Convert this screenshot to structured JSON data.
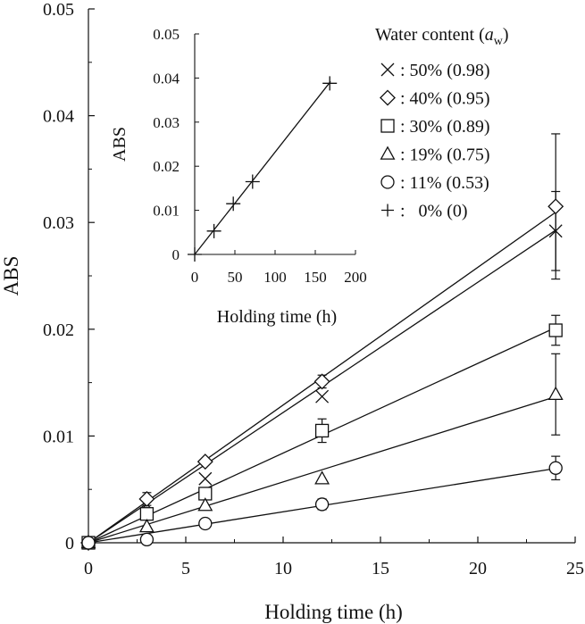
{
  "chart_data": [
    {
      "id": "main",
      "type": "scatter",
      "xlabel": "Holding time (h)",
      "ylabel": "ABS",
      "xlim": [
        0,
        25
      ],
      "ylim": [
        0,
        0.05
      ],
      "xticks": [
        0,
        5,
        10,
        15,
        20,
        25
      ],
      "yticks": [
        0,
        0.01,
        0.02,
        0.03,
        0.04,
        0.05
      ],
      "ytick_labels": [
        "0",
        "0.01",
        "0.02",
        "0.03",
        "0.04",
        "0.05"
      ],
      "legend": {
        "title_prefix": "Water content (",
        "title_var": "a",
        "title_sub": "w",
        "title_suffix": ")",
        "placement": "top-right"
      },
      "series": [
        {
          "name": ": 50% (0.98)",
          "marker": "cross",
          "x": [
            0,
            3,
            6,
            12,
            24
          ],
          "y": [
            0,
            0.0036,
            0.006,
            0.0137,
            0.0292
          ],
          "err": [
            0,
            0,
            0,
            0,
            0.0037
          ],
          "fit_slope": 0.00122
        },
        {
          "name": ": 40% (0.95)",
          "marker": "diamond",
          "x": [
            0,
            3,
            6,
            12,
            24
          ],
          "y": [
            0,
            0.0041,
            0.0076,
            0.0151,
            0.0315
          ],
          "err": [
            0,
            0.0006,
            0,
            0.0006,
            0.0068
          ],
          "fit_slope": 0.00129
        },
        {
          "name": ": 30% (0.89)",
          "marker": "square",
          "x": [
            0,
            3,
            6,
            12,
            24
          ],
          "y": [
            0,
            0.0027,
            0.0046,
            0.0105,
            0.0199
          ],
          "err": [
            0,
            0,
            0,
            0.0011,
            0.0014
          ],
          "fit_slope": 0.00084
        },
        {
          "name": ": 19% (0.75)",
          "marker": "triangle",
          "x": [
            0,
            3,
            6,
            12,
            24
          ],
          "y": [
            0,
            0.0015,
            0.0035,
            0.006,
            0.0139
          ],
          "err": [
            0,
            0,
            0,
            0,
            0.0038
          ],
          "fit_slope": 0.00057
        },
        {
          "name": ": 11% (0.53)",
          "marker": "circle",
          "x": [
            0,
            3,
            6,
            12,
            24
          ],
          "y": [
            0,
            0.0003,
            0.0018,
            0.0036,
            0.007
          ],
          "err": [
            0,
            0,
            0,
            0.0005,
            0.0011
          ],
          "fit_slope": 0.00029
        },
        {
          "name": ":   0% (0)",
          "marker": "plus",
          "x": [],
          "y": [],
          "err": [],
          "fit_slope": null
        }
      ]
    },
    {
      "id": "inset",
      "type": "scatter",
      "xlabel": "Holding time (h)",
      "ylabel": "ABS",
      "xlim": [
        0,
        200
      ],
      "ylim": [
        0,
        0.05
      ],
      "xticks": [
        0,
        50,
        100,
        150,
        200
      ],
      "yticks": [
        0,
        0.01,
        0.02,
        0.03,
        0.04,
        0.05
      ],
      "ytick_labels": [
        "0",
        "0.01",
        "0.02",
        "0.03",
        "0.04",
        "0.05"
      ],
      "series": [
        {
          "name": "0% (0)",
          "marker": "plus",
          "x": [
            0,
            24,
            48,
            72,
            168
          ],
          "y": [
            0,
            0.0053,
            0.0115,
            0.0165,
            0.0388
          ],
          "fit_slope": 0.000232
        }
      ]
    }
  ]
}
